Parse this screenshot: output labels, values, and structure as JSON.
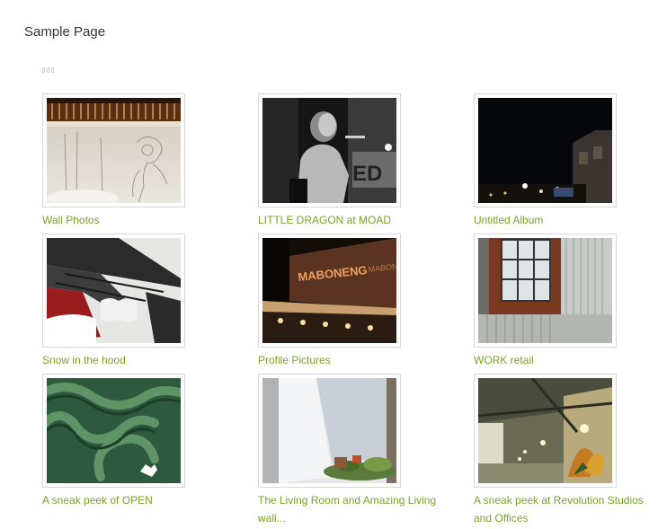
{
  "page": {
    "title": "Sample Page"
  },
  "albums": [
    {
      "title": "Wall Photos",
      "photo": "wall-sketch-photo"
    },
    {
      "title": "LITTLE DRAGON at MOAD",
      "photo": "concert-performer-photo"
    },
    {
      "title": "Untitled Album",
      "photo": "night-city-photo"
    },
    {
      "title": "Snow in the hood",
      "photo": "snow-rooftop-photo"
    },
    {
      "title": "Profile Pictures",
      "photo": "maboneng-building-photo"
    },
    {
      "title": "WORK retail",
      "photo": "warehouse-window-photo"
    },
    {
      "title": "A sneak peek of OPEN",
      "photo": "green-wall-art-photo"
    },
    {
      "title": "The Living Room and Amazing Living wall...",
      "photo": "living-wall-photo"
    },
    {
      "title": "A sneak peek at Revolution Studios and Offices",
      "photo": "studio-interior-photo"
    }
  ]
}
